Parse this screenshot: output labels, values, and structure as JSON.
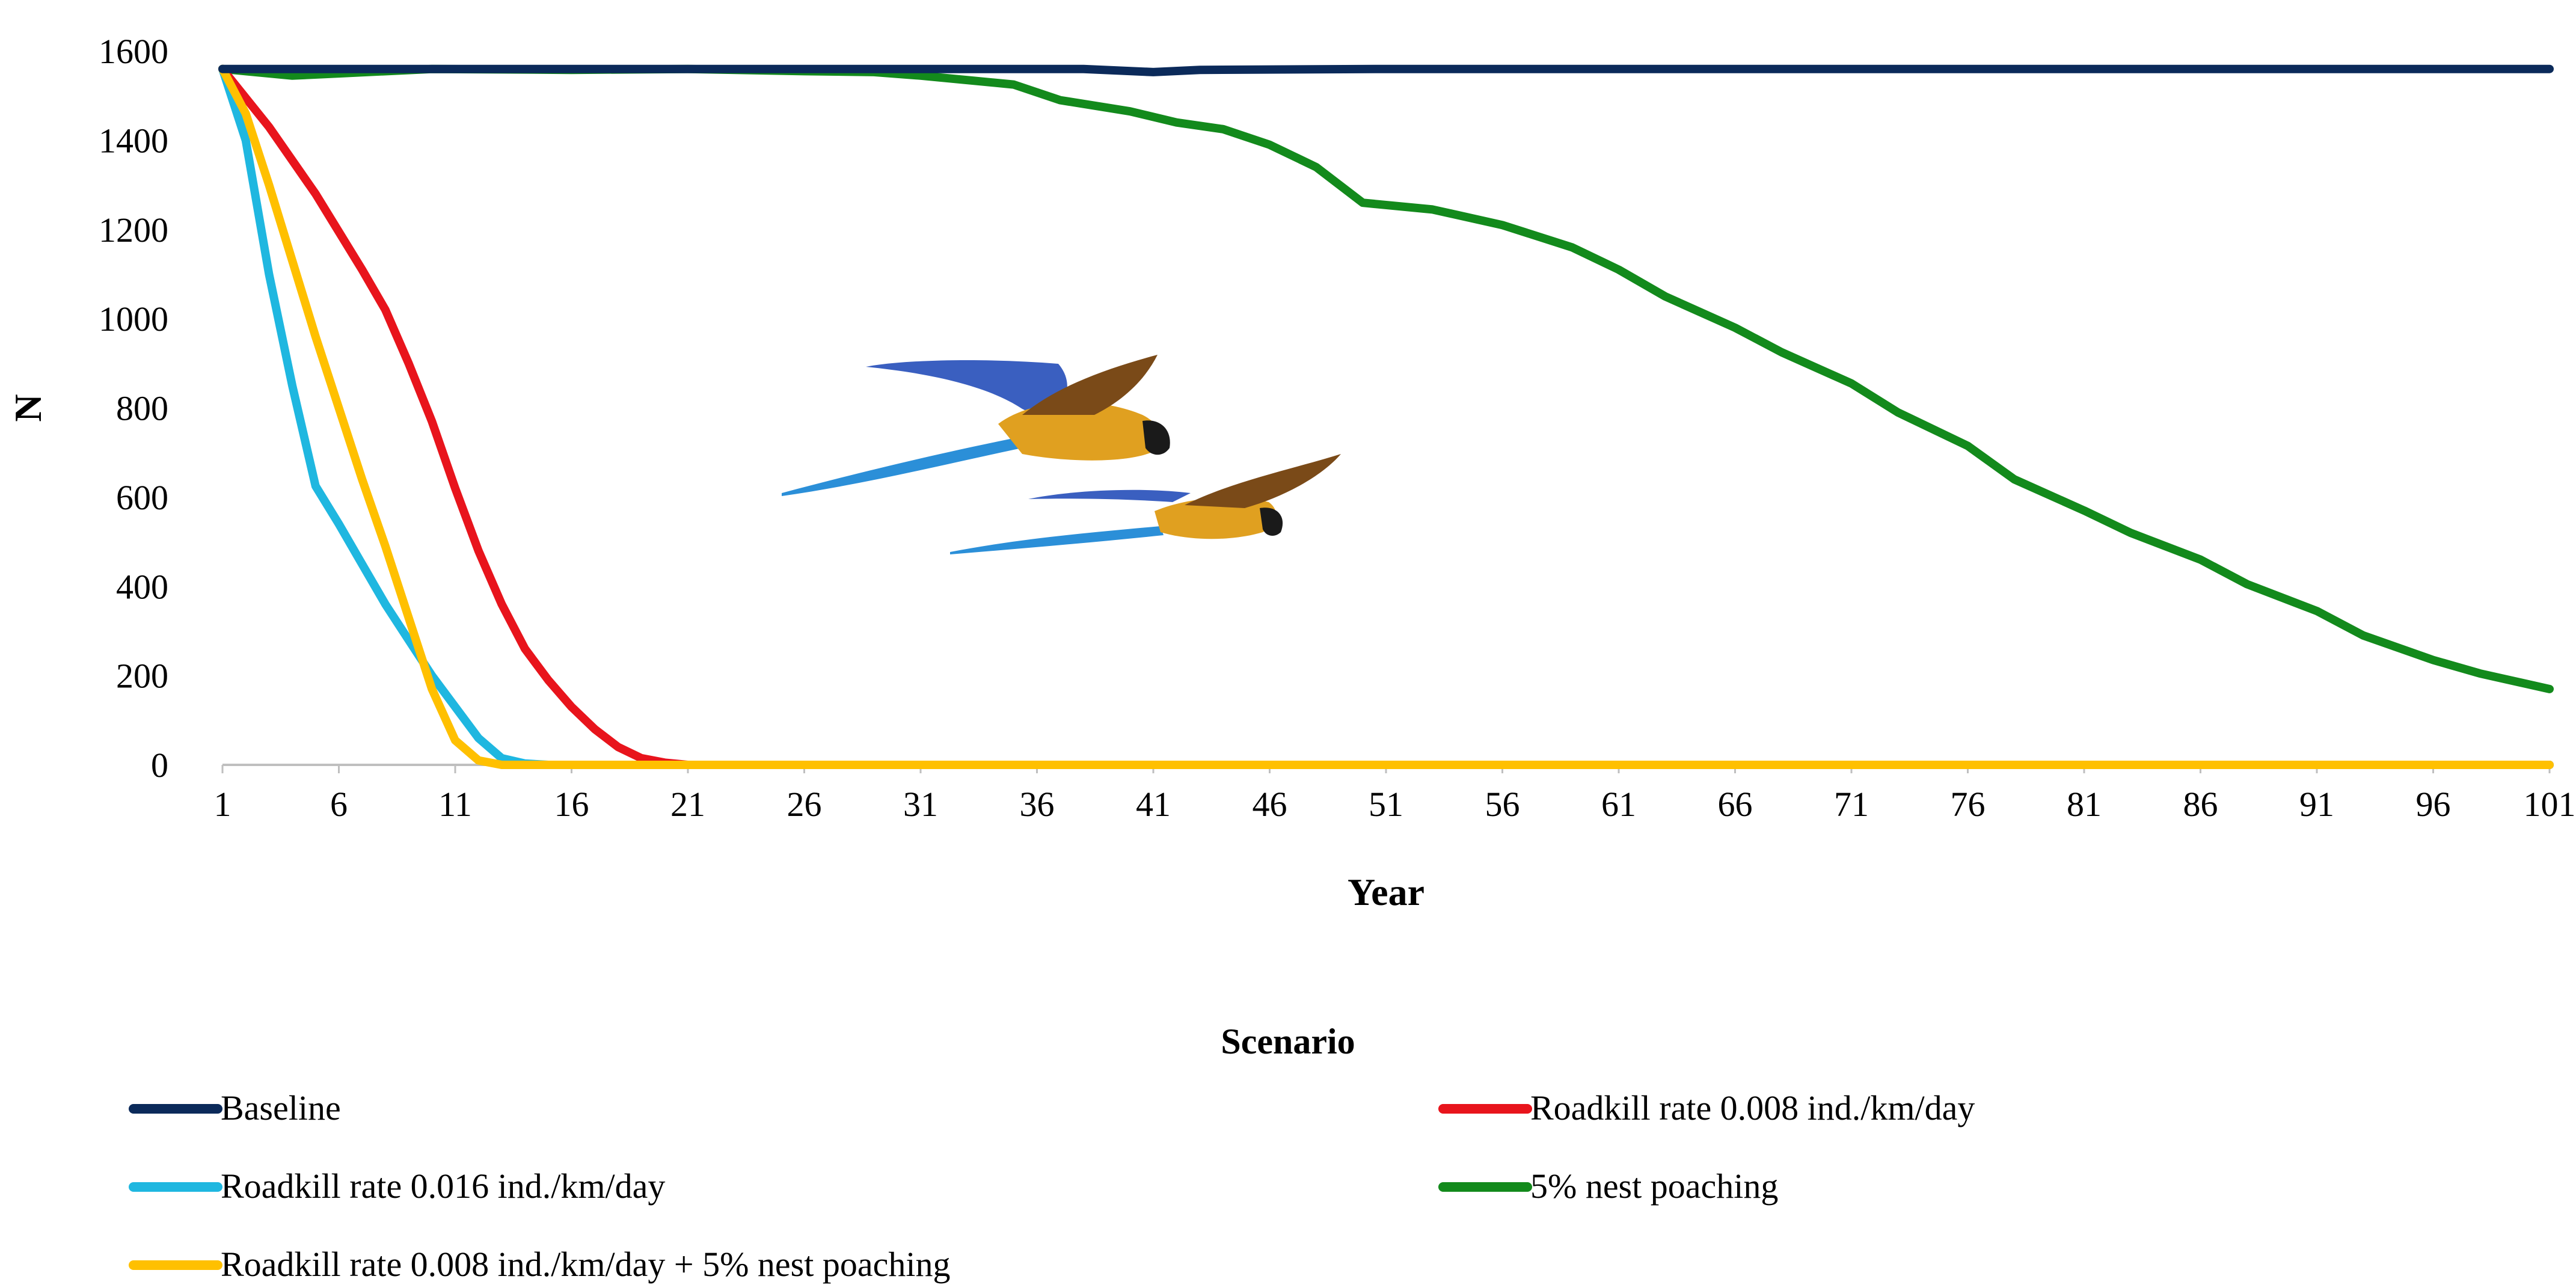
{
  "chart_data": {
    "type": "line",
    "title": "",
    "xlabel": "Year",
    "ylabel": "N",
    "xlim": [
      1,
      101
    ],
    "ylim": [
      0,
      1600
    ],
    "xticks": [
      1,
      6,
      11,
      16,
      21,
      26,
      31,
      36,
      41,
      46,
      51,
      56,
      61,
      66,
      71,
      76,
      81,
      86,
      91,
      96,
      101
    ],
    "yticks": [
      0,
      200,
      400,
      600,
      800,
      1000,
      1200,
      1400,
      1600
    ],
    "grid": false,
    "legend_title": "Scenario",
    "legend_position": "bottom",
    "series": [
      {
        "name": "Baseline",
        "color": "#0b2a5a",
        "points": [
          [
            1,
            1560
          ],
          [
            11,
            1560
          ],
          [
            21,
            1560
          ],
          [
            31,
            1560
          ],
          [
            38,
            1560
          ],
          [
            41,
            1553
          ],
          [
            43,
            1558
          ],
          [
            51,
            1560
          ],
          [
            61,
            1560
          ],
          [
            71,
            1560
          ],
          [
            81,
            1560
          ],
          [
            91,
            1560
          ],
          [
            101,
            1560
          ]
        ]
      },
      {
        "name": "Roadkill rate 0.008 ind./km/day",
        "color": "#e8141c",
        "points": [
          [
            1,
            1560
          ],
          [
            3,
            1430
          ],
          [
            5,
            1280
          ],
          [
            7,
            1110
          ],
          [
            8,
            1020
          ],
          [
            9,
            900
          ],
          [
            10,
            770
          ],
          [
            11,
            620
          ],
          [
            12,
            480
          ],
          [
            13,
            360
          ],
          [
            14,
            260
          ],
          [
            15,
            190
          ],
          [
            16,
            130
          ],
          [
            17,
            80
          ],
          [
            18,
            40
          ],
          [
            19,
            15
          ],
          [
            20,
            5
          ],
          [
            21,
            0
          ],
          [
            101,
            0
          ]
        ]
      },
      {
        "name": "Roadkill rate 0.016 ind./km/day",
        "color": "#1fb7e0",
        "points": [
          [
            1,
            1560
          ],
          [
            2,
            1400
          ],
          [
            3,
            1100
          ],
          [
            4,
            850
          ],
          [
            5,
            625
          ],
          [
            6,
            540
          ],
          [
            7,
            450
          ],
          [
            8,
            360
          ],
          [
            9,
            280
          ],
          [
            10,
            200
          ],
          [
            11,
            130
          ],
          [
            12,
            60
          ],
          [
            13,
            15
          ],
          [
            14,
            3
          ],
          [
            15,
            0
          ],
          [
            101,
            0
          ]
        ]
      },
      {
        "name": "5% nest poaching",
        "color": "#138a1c",
        "points": [
          [
            1,
            1560
          ],
          [
            2,
            1555
          ],
          [
            4,
            1545
          ],
          [
            6,
            1550
          ],
          [
            10,
            1560
          ],
          [
            16,
            1558
          ],
          [
            21,
            1560
          ],
          [
            26,
            1555
          ],
          [
            29,
            1553
          ],
          [
            31,
            1545
          ],
          [
            35,
            1525
          ],
          [
            37,
            1490
          ],
          [
            40,
            1465
          ],
          [
            42,
            1440
          ],
          [
            44,
            1425
          ],
          [
            46,
            1390
          ],
          [
            48,
            1340
          ],
          [
            50,
            1260
          ],
          [
            53,
            1245
          ],
          [
            56,
            1210
          ],
          [
            59,
            1160
          ],
          [
            61,
            1110
          ],
          [
            63,
            1050
          ],
          [
            66,
            980
          ],
          [
            68,
            925
          ],
          [
            71,
            855
          ],
          [
            73,
            790
          ],
          [
            76,
            715
          ],
          [
            78,
            640
          ],
          [
            81,
            570
          ],
          [
            83,
            520
          ],
          [
            86,
            460
          ],
          [
            88,
            405
          ],
          [
            91,
            345
          ],
          [
            93,
            290
          ],
          [
            96,
            235
          ],
          [
            98,
            205
          ],
          [
            101,
            170
          ]
        ]
      },
      {
        "name": "Roadkill rate 0.008 ind./km/day + 5% nest poaching",
        "color": "#ffc000",
        "points": [
          [
            1,
            1560
          ],
          [
            2,
            1460
          ],
          [
            3,
            1300
          ],
          [
            4,
            1130
          ],
          [
            5,
            960
          ],
          [
            6,
            800
          ],
          [
            7,
            640
          ],
          [
            8,
            490
          ],
          [
            9,
            330
          ],
          [
            10,
            170
          ],
          [
            11,
            55
          ],
          [
            12,
            10
          ],
          [
            13,
            0
          ],
          [
            101,
            0
          ]
        ]
      }
    ]
  },
  "illustration": {
    "name": "macaws-in-flight",
    "body_color": "#e0a020",
    "wing_color": "#1a7fd0",
    "wing_dark": "#6a3c12"
  }
}
